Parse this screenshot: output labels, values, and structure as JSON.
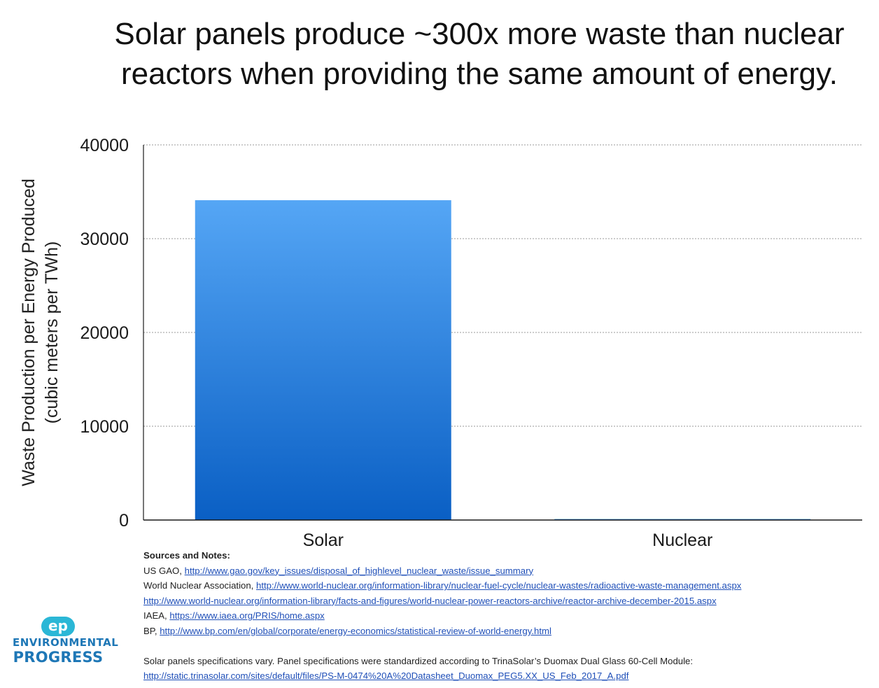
{
  "chart_data": {
    "type": "bar",
    "title": "Solar panels produce ~300x more waste than nuclear reactors when providing the same amount of energy.",
    "ylabel": [
      "Waste Production per Energy Produced",
      "(cubic meters per TWh)"
    ],
    "categories": [
      "Solar",
      "Nuclear"
    ],
    "values": [
      34100,
      110
    ],
    "ylim": [
      0,
      40000
    ],
    "yticks": [
      0,
      10000,
      20000,
      30000,
      40000
    ],
    "grid": true,
    "colors": {
      "bar_top": "#55a6f5",
      "bar_bottom": "#0a5fc4",
      "grid": "#9a9a9a",
      "axis": "#1a1a1a"
    }
  },
  "notes": {
    "heading": "Sources and Notes:",
    "lines": [
      {
        "prefix": "US GAO, ",
        "link": "http://www.gao.gov/key_issues/disposal_of_highlevel_nuclear_waste/issue_summary"
      },
      {
        "prefix": "World Nuclear Association, ",
        "link": "http://www.world-nuclear.org/information-library/nuclear-fuel-cycle/nuclear-wastes/radioactive-waste-management.aspx"
      },
      {
        "prefix": "",
        "link": "http://www.world-nuclear.org/information-library/facts-and-figures/world-nuclear-power-reactors-archive/reactor-archive-december-2015.aspx"
      },
      {
        "prefix": "IAEA, ",
        "link": "https://www.iaea.org/PRIS/home.aspx"
      },
      {
        "prefix": "BP, ",
        "link": "http://www.bp.com/en/global/corporate/energy-economics/statistical-review-of-world-energy.html"
      }
    ],
    "spec_text": "Solar panels specifications vary. Panel specifications were standardized according to TrinaSolar’s Duomax Dual Glass 60-Cell Module:",
    "spec_link": "http://static.trinasolar.com/sites/default/files/PS-M-0474%20A%20Datasheet_Duomax_PEG5.XX_US_Feb_2017_A.pdf"
  },
  "logo": {
    "mark": "ep",
    "line1": "ENVIRONMENTAL",
    "line2": "PROGRESS",
    "colors": {
      "mark": "#2bb7d6",
      "text": "#1e77b6"
    }
  }
}
